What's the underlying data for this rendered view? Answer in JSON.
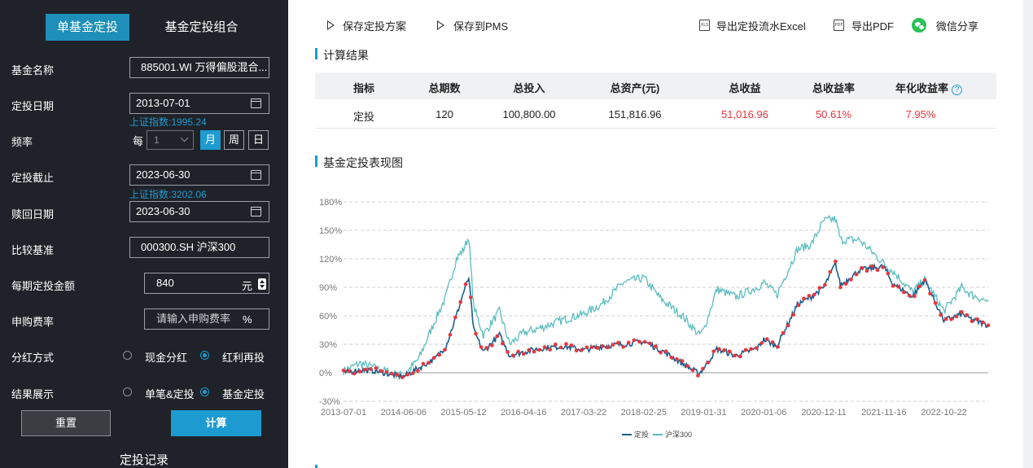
{
  "sidebar": {
    "tabs": [
      {
        "label": "单基金定投",
        "active": true
      },
      {
        "label": "基金定投组合",
        "active": false
      }
    ],
    "fund_name": {
      "label": "基金名称",
      "value": "885001.WI 万得偏股混合..."
    },
    "start_date": {
      "label": "定投日期",
      "value": "2013-07-01",
      "hint": "上证指数:1995.24"
    },
    "frequency": {
      "label": "频率",
      "every": "每",
      "count": "1",
      "options": [
        "月",
        "周",
        "日"
      ],
      "selected": "月"
    },
    "end_date": {
      "label": "定投截止",
      "value": "2023-06-30",
      "hint": "上证指数:3202.06"
    },
    "redeem_date": {
      "label": "赎回日期",
      "value": "2023-06-30"
    },
    "benchmark": {
      "label": "比较基准",
      "value": "000300.SH 沪深300"
    },
    "amount": {
      "label": "每期定投金额",
      "value": "840",
      "unit": "元"
    },
    "fee": {
      "label": "申购费率",
      "placeholder": "请输入申购费率",
      "unit": "%"
    },
    "dividend": {
      "label": "分红方式",
      "options": [
        "现金分红",
        "红利再投"
      ],
      "selected": "红利再投"
    },
    "display": {
      "label": "结果展示",
      "options": [
        "单笔&定投",
        "基金定投"
      ],
      "selected": "基金定投"
    },
    "reset_label": "重置",
    "calc_label": "计算",
    "records_title": "定投记录"
  },
  "toolbar": {
    "save_plan": "保存定投方案",
    "save_pms": "保存到PMS",
    "export_excel": "导出定投流水Excel",
    "export_pdf": "导出PDF",
    "wechat_share": "微信分享",
    "xls_icon_text": "XLS",
    "pdf_icon_text": "PDF"
  },
  "result": {
    "title": "计算结果",
    "headers": [
      "指标",
      "总期数",
      "总投入",
      "总资产(元)",
      "总收益",
      "总收益率",
      "年化收益率"
    ],
    "row": [
      "定投",
      "120",
      "100,800.00",
      "151,816.96",
      "51,016.96",
      "50.61%",
      "7.95%"
    ],
    "help_icon": "?",
    "colors": {
      "positive": "#e8353c",
      "accent": "#1d9bd1"
    }
  },
  "chart_section_title": "基金定投表现图",
  "chart_data": {
    "type": "line",
    "title": "",
    "xlabel": "",
    "ylabel": "",
    "ylim": [
      -30,
      180
    ],
    "yticks": [
      -30,
      0,
      30,
      60,
      90,
      120,
      150,
      180
    ],
    "ytick_labels": [
      "-30%",
      "0%",
      "30%",
      "60%",
      "90%",
      "120%",
      "150%",
      "180%"
    ],
    "xrange": [
      "2013-07-01",
      "2023-06-30"
    ],
    "xtick_labels": [
      "2013-07-01",
      "2014-06-06",
      "2015-05-12",
      "2016-04-16",
      "2017-03-22",
      "2018-02-25",
      "2019-01-31",
      "2020-01-06",
      "2020-12-11",
      "2021-11-16",
      "2022-10-22"
    ],
    "grid": "horizontal-dashed",
    "legend": "bottom-center",
    "series": [
      {
        "name": "定投",
        "color": "#1b5e8c",
        "marker_color": "#e8353c",
        "x": [
          "2013-07-01",
          "2013-10-01",
          "2014-01-01",
          "2014-04-01",
          "2014-06-06",
          "2014-09-01",
          "2014-12-01",
          "2015-02-01",
          "2015-04-01",
          "2015-05-12",
          "2015-06-10",
          "2015-07-08",
          "2015-09-01",
          "2015-12-01",
          "2016-01-28",
          "2016-04-16",
          "2016-08-01",
          "2016-12-01",
          "2017-03-22",
          "2017-07-01",
          "2017-11-01",
          "2018-02-25",
          "2018-06-01",
          "2018-10-01",
          "2019-01-04",
          "2019-01-31",
          "2019-04-15",
          "2019-08-01",
          "2019-12-01",
          "2020-01-06",
          "2020-03-20",
          "2020-07-15",
          "2020-09-30",
          "2020-12-11",
          "2021-02-15",
          "2021-03-15",
          "2021-07-01",
          "2021-11-16",
          "2022-01-01",
          "2022-04-27",
          "2022-07-05",
          "2022-10-22",
          "2023-01-31",
          "2023-03-30",
          "2023-06-30"
        ],
        "y": [
          0,
          3,
          2,
          -2,
          -4,
          5,
          15,
          28,
          60,
          85,
          100,
          45,
          22,
          40,
          18,
          22,
          26,
          28,
          24,
          28,
          30,
          33,
          24,
          10,
          -1,
          5,
          25,
          18,
          26,
          35,
          28,
          72,
          80,
          90,
          115,
          92,
          108,
          112,
          95,
          80,
          98,
          55,
          62,
          56,
          50
        ]
      },
      {
        "name": "沪深300",
        "color": "#5bbdc0",
        "x": [
          "2013-07-01",
          "2013-10-01",
          "2014-01-01",
          "2014-04-01",
          "2014-06-06",
          "2014-09-01",
          "2014-12-01",
          "2015-02-01",
          "2015-04-01",
          "2015-05-12",
          "2015-06-10",
          "2015-07-08",
          "2015-09-01",
          "2015-12-01",
          "2016-01-28",
          "2016-04-16",
          "2016-08-01",
          "2016-12-01",
          "2017-03-22",
          "2017-07-01",
          "2017-11-01",
          "2018-02-25",
          "2018-06-01",
          "2018-10-01",
          "2019-01-04",
          "2019-01-31",
          "2019-04-15",
          "2019-08-01",
          "2019-12-01",
          "2020-01-06",
          "2020-03-20",
          "2020-07-15",
          "2020-09-30",
          "2020-12-11",
          "2021-02-15",
          "2021-03-15",
          "2021-07-01",
          "2021-11-16",
          "2022-01-01",
          "2022-04-27",
          "2022-07-05",
          "2022-10-22",
          "2023-01-31",
          "2023-03-30",
          "2023-06-30"
        ],
        "y": [
          2,
          10,
          5,
          0,
          -3,
          15,
          55,
          80,
          120,
          130,
          143,
          70,
          40,
          65,
          30,
          42,
          48,
          56,
          62,
          72,
          95,
          100,
          78,
          60,
          40,
          45,
          88,
          80,
          90,
          95,
          82,
          130,
          135,
          160,
          162,
          140,
          140,
          115,
          108,
          85,
          98,
          65,
          90,
          82,
          75
        ]
      }
    ]
  }
}
